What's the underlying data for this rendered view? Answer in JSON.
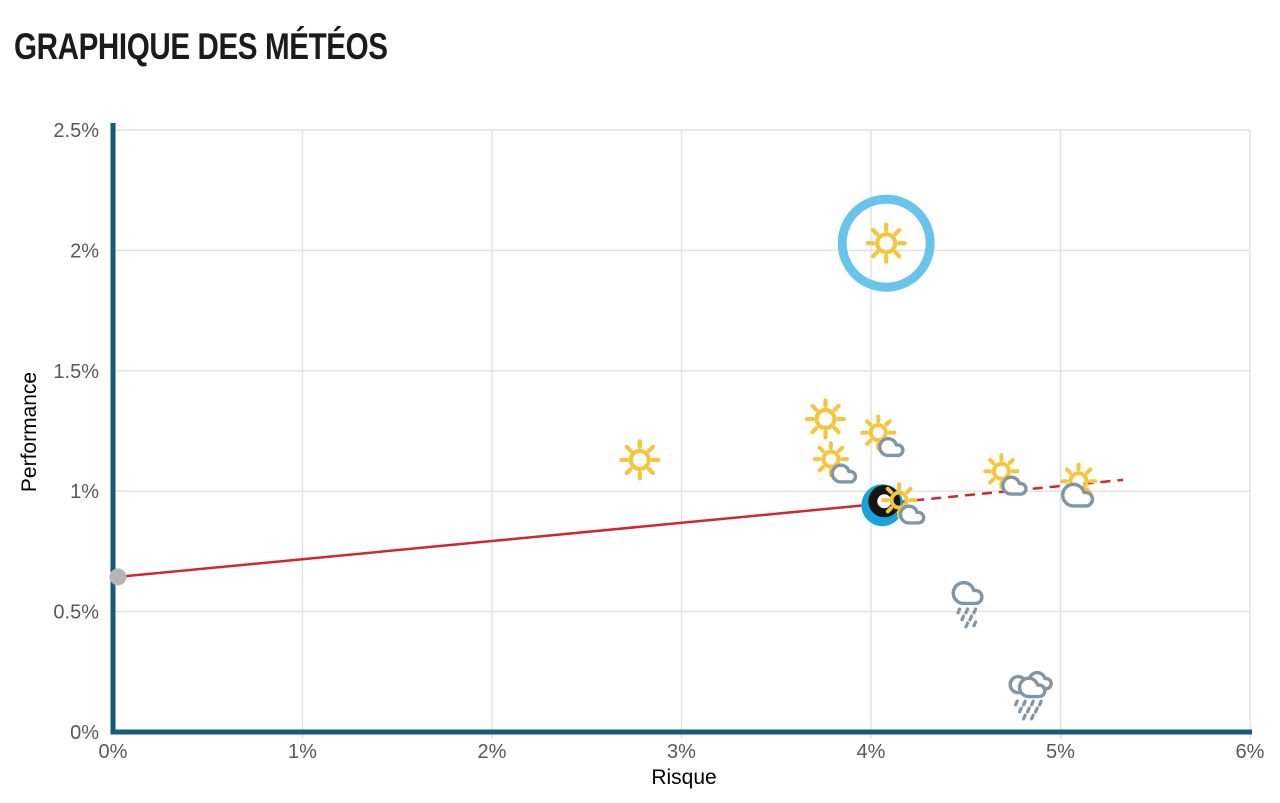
{
  "title": "GRAPHIQUE DES MÉTÉOS",
  "chart_data": {
    "type": "scatter",
    "title": "GRAPHIQUE DES MÉTÉOS",
    "xlabel": "Risque",
    "ylabel": "Performance",
    "xlim": [
      0,
      6
    ],
    "ylim": [
      0,
      2.5
    ],
    "grid": true,
    "legend": false,
    "x_ticks": [
      {
        "v": 0,
        "label": "0%"
      },
      {
        "v": 1,
        "label": "1%"
      },
      {
        "v": 2,
        "label": "2%"
      },
      {
        "v": 3,
        "label": "3%"
      },
      {
        "v": 4,
        "label": "4%"
      },
      {
        "v": 5,
        "label": "5%"
      },
      {
        "v": 6,
        "label": "6%"
      }
    ],
    "y_ticks": [
      {
        "v": 0,
        "label": "0%"
      },
      {
        "v": 0.5,
        "label": "0.5%"
      },
      {
        "v": 1,
        "label": "1%"
      },
      {
        "v": 1.5,
        "label": "1.5%"
      },
      {
        "v": 2,
        "label": "2%"
      },
      {
        "v": 2.5,
        "label": "2.5%"
      }
    ],
    "points": [
      {
        "type": "sun",
        "x": 2.78,
        "y": 1.13
      },
      {
        "type": "sun",
        "x": 3.76,
        "y": 1.3
      },
      {
        "type": "sun-cloud",
        "x": 3.82,
        "y": 1.1
      },
      {
        "type": "sun-cloud",
        "x": 4.07,
        "y": 1.21
      },
      {
        "type": "sun",
        "x": 4.08,
        "y": 2.03,
        "highlighted": true
      },
      {
        "type": "selected-dot",
        "x": 4.06,
        "y": 0.942
      },
      {
        "type": "ring-marker",
        "x": 4.07,
        "y": 0.958
      },
      {
        "type": "sun-cloud",
        "x": 4.18,
        "y": 0.93
      },
      {
        "type": "sun-cloud",
        "x": 4.72,
        "y": 1.05
      },
      {
        "type": "sun-behind-cloud",
        "x": 5.09,
        "y": 1.0
      },
      {
        "type": "rain",
        "x": 4.51,
        "y": 0.54
      },
      {
        "type": "heavy-rain",
        "x": 4.84,
        "y": 0.17
      }
    ],
    "trend": {
      "start_dot": {
        "x": 0.026,
        "y": 0.644
      },
      "solid": [
        [
          0.026,
          0.644
        ],
        [
          4.05,
          0.948
        ]
      ],
      "dashed": [
        [
          4.05,
          0.948
        ],
        [
          5.33,
          1.047
        ]
      ]
    },
    "colors": {
      "axis": "#175a7d",
      "grid": "#e1e1e1",
      "tick_text": "#595959",
      "trend": "#d22630",
      "start_dot": "#b5b5b5",
      "sun": "#f5c63d",
      "cloud": "#8095a5",
      "cloud_fill": "#ffffff",
      "highlight_ring": "#68c4eb",
      "selected_dot": "#18a3da",
      "ring_marker": "#141414"
    }
  }
}
